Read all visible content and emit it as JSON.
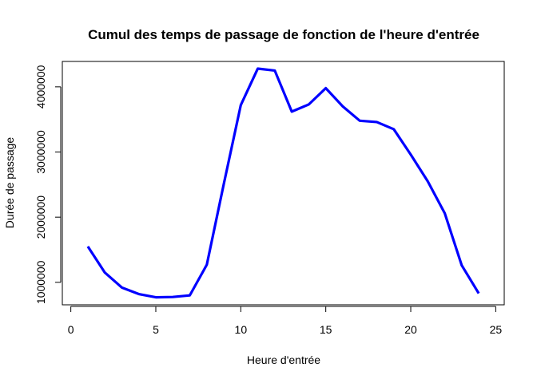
{
  "chart_data": {
    "type": "line",
    "title": "Cumul des temps de passage de fonction de l'heure d'entrée",
    "xlabel": "Heure d'entrée",
    "ylabel": "Durée de passage",
    "xlim": [
      -0.5,
      25.5
    ],
    "ylim": [
      655000,
      4390000
    ],
    "xticks": [
      0,
      5,
      10,
      15,
      20,
      25
    ],
    "yticks": [
      1000000,
      2000000,
      3000000,
      4000000
    ],
    "xtick_labels": [
      "0",
      "5",
      "10",
      "15",
      "20",
      "25"
    ],
    "ytick_labels": [
      "1000000",
      "2000000",
      "3000000",
      "4000000"
    ],
    "grid": false,
    "line_color": "#0000ff",
    "series": [
      {
        "x": [
          1,
          2,
          3,
          4,
          5,
          6,
          7,
          8,
          9,
          10,
          11,
          12,
          13,
          14,
          15,
          16,
          17,
          18,
          19,
          20,
          21,
          22,
          23,
          24
        ],
        "values": [
          1550000,
          1150000,
          920000,
          820000,
          770000,
          775000,
          800000,
          1270000,
          2510000,
          3720000,
          4280000,
          4250000,
          3620000,
          3730000,
          3980000,
          3700000,
          3480000,
          3460000,
          3350000,
          2960000,
          2550000,
          2060000,
          1260000,
          830000
        ]
      }
    ]
  }
}
